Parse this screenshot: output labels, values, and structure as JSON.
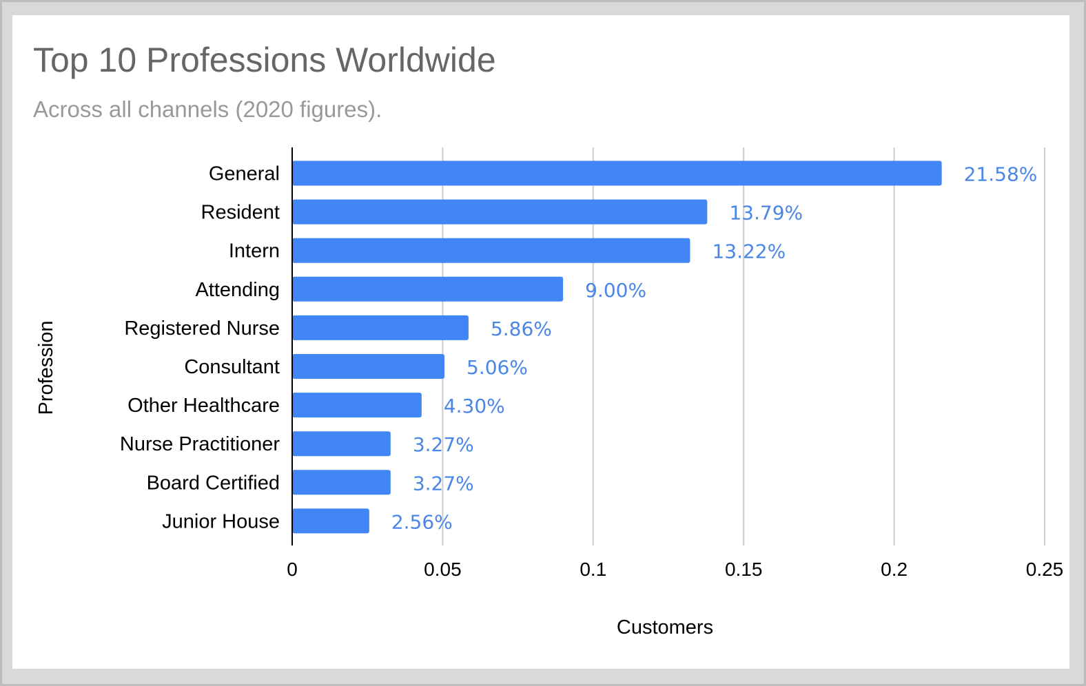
{
  "chart_data": {
    "type": "bar",
    "orientation": "horizontal",
    "title": "Top 10 Professions Worldwide",
    "subtitle": "Across all channels (2020 figures).",
    "xlabel": "Customers",
    "ylabel": "Profession",
    "categories": [
      "General",
      "Resident",
      "Intern",
      "Attending",
      "Registered Nurse",
      "Consultant",
      "Other Healthcare",
      "Nurse Practitioner",
      "Board Certified",
      "Junior House"
    ],
    "values": [
      0.2158,
      0.1379,
      0.1322,
      0.09,
      0.0586,
      0.0506,
      0.043,
      0.0327,
      0.0327,
      0.0256
    ],
    "data_labels": [
      "21.58%",
      "13.79%",
      "13.22%",
      "9.00%",
      "5.86%",
      "5.06%",
      "4.30%",
      "3.27%",
      "3.27%",
      "2.56%"
    ],
    "xlim": [
      0,
      0.25
    ],
    "xticks": [
      0,
      0.05,
      0.1,
      0.15,
      0.2,
      0.25
    ],
    "xtick_labels": [
      "0",
      "0.05",
      "0.1",
      "0.15",
      "0.2",
      "0.25"
    ],
    "grid": "vertical",
    "legend": "none",
    "colors": {
      "bar": "#4285f4",
      "data_label": "#4a86e8",
      "title": "#666666",
      "subtitle": "#999999",
      "gridline": "#cccccc",
      "axis": "#000000"
    }
  }
}
